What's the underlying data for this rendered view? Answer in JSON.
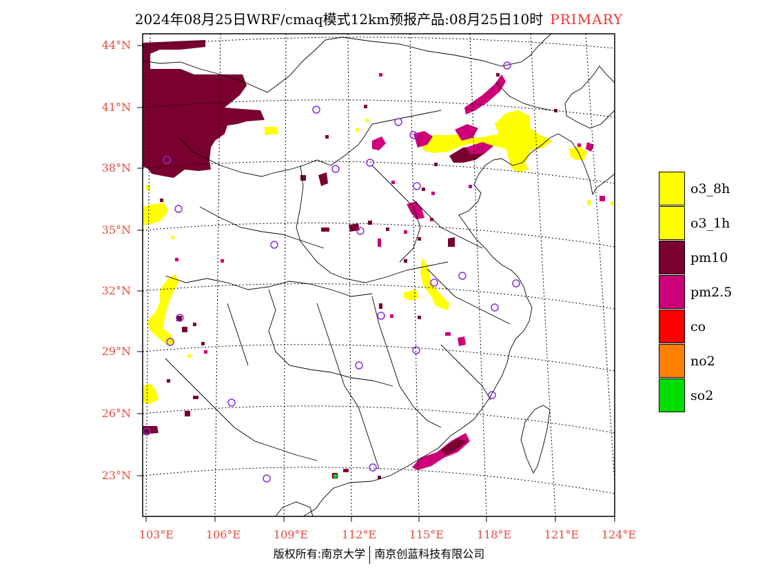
{
  "title": {
    "main": "2024年08月25日WRF/cmaq模式12km预报产品:08月25日10时",
    "tag": "PRIMARY"
  },
  "colors": {
    "o3_8h": "#ffff00",
    "o3_1h": "#ffff00",
    "pm10": "#7a0030",
    "pm2_5": "#cc0077",
    "co": "#ff0000",
    "no2": "#ff7f00",
    "so2": "#00dd00",
    "station": "#8a2be2",
    "axis_label": "#e8483a"
  },
  "lat_labels": [
    "44°N",
    "41°N",
    "38°N",
    "35°N",
    "32°N",
    "29°N",
    "26°N",
    "23°N"
  ],
  "lon_labels": [
    "103°E",
    "106°E",
    "109°E",
    "112°E",
    "115°E",
    "118°E",
    "121°E",
    "124°E"
  ],
  "legend": [
    {
      "key": "o3_8h",
      "label": "o3_8h"
    },
    {
      "key": "o3_1h",
      "label": "o3_1h"
    },
    {
      "key": "pm10",
      "label": "pm10"
    },
    {
      "key": "pm2_5",
      "label": "pm2.5"
    },
    {
      "key": "co",
      "label": "co"
    },
    {
      "key": "no2",
      "label": "no2"
    },
    {
      "key": "so2",
      "label": "so2"
    }
  ],
  "footer": {
    "left": "版权所有:南京大学",
    "right": "南京创蓝科技有限公司"
  }
}
